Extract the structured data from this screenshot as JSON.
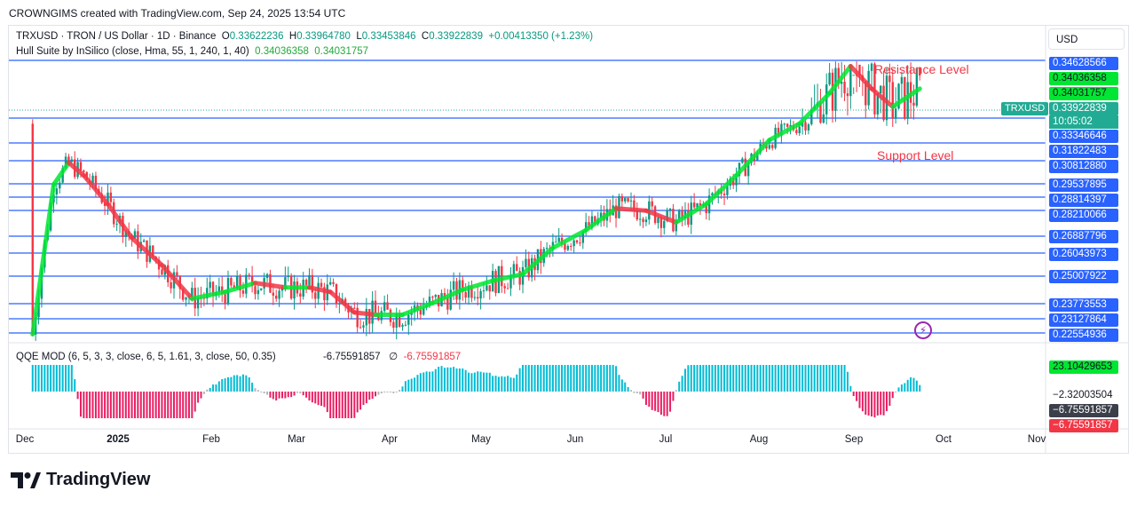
{
  "header": {
    "attribution": "CROWNGIMS created with TradingView.com, Sep 24, 2025 13:54 UTC"
  },
  "legend": {
    "symbol": "TRXUSD · TRON / US Dollar · 1D · Binance",
    "o_label": "O",
    "o_value": "0.33622236",
    "h_label": "H",
    "h_value": "0.33964780",
    "l_label": "L",
    "l_value": "0.33453846",
    "c_label": "C",
    "c_value": "0.33922839",
    "change": "+0.00413350 (+1.23%)",
    "indicator": "Hull Suite by InSilico (close, Hma, 55, 1, 240, 1, 40)",
    "indicator_v1": "0.34036358",
    "indicator_v2": "0.34031757",
    "qqe": "QQE MOD (6, 5, 3, 3, close, 6, 5, 1.61, 3, close, 50, 0.35)",
    "qqe_v1": "-6.75591857",
    "qqe_v2": "∅",
    "qqe_v3": "-6.75591857"
  },
  "currency": "USD",
  "symbol_tag": "TRXUSD",
  "countdown": "10:05:02",
  "annotations": {
    "resistance": "Resistance Level",
    "support": "Support Level"
  },
  "price_labels": [
    {
      "value": "0.34628566",
      "style": "blue"
    },
    {
      "value": "0.34036358",
      "style": "green"
    },
    {
      "value": "0.34031757",
      "style": "green"
    },
    {
      "value": "0.33922839",
      "style": "teal"
    },
    {
      "value": "0.33346646",
      "style": "blue"
    },
    {
      "value": "0.31822483",
      "style": "blue"
    },
    {
      "value": "0.30812880",
      "style": "blue"
    },
    {
      "value": "0.29537895",
      "style": "blue"
    },
    {
      "value": "0.28814397",
      "style": "blue"
    },
    {
      "value": "0.28210066",
      "style": "blue"
    },
    {
      "value": "0.26887796",
      "style": "blue"
    },
    {
      "value": "0.26043973",
      "style": "blue"
    },
    {
      "value": "0.25007922",
      "style": "blue"
    },
    {
      "value": "0.23773553",
      "style": "blue"
    },
    {
      "value": "0.23127864",
      "style": "blue"
    },
    {
      "value": "0.22554936",
      "style": "blue"
    }
  ],
  "qqe_labels": [
    {
      "value": "23.10429653",
      "style": "qgreen"
    },
    {
      "value": "−2.32003504",
      "style": "white"
    },
    {
      "value": "−6.75591857",
      "style": "dark"
    },
    {
      "value": "−6.75591857",
      "style": "red"
    }
  ],
  "x_axis": [
    "Dec",
    "2025",
    "Feb",
    "Mar",
    "Apr",
    "May",
    "Jun",
    "Jul",
    "Aug",
    "Sep",
    "Oct",
    "Nov"
  ],
  "brand": "TradingView",
  "colors": {
    "up": "#089981",
    "down": "#f23645",
    "level": "#2962ff",
    "hull_up": "#00e632",
    "hull_down": "#f23645",
    "qqe_pos": "#00bcd4",
    "qqe_neg": "#e91e63",
    "qqe_neutral": "#b2b5be"
  },
  "chart_data": {
    "type": "candlestick",
    "title": "TRXUSD · TRON / US Dollar · 1D · Binance",
    "x_range": [
      "2024-12-01",
      "2025-11-01"
    ],
    "y_range": [
      0.225,
      0.3475
    ],
    "horizontal_levels": [
      0.34628566,
      0.33346646,
      0.31822483,
      0.3081288,
      0.29537895,
      0.28814397,
      0.28210066,
      0.26887796,
      0.26043973,
      0.25007922,
      0.23773553,
      0.23127864,
      0.22554936
    ],
    "hull_series": {
      "name": "Hull Suite by InSilico",
      "points": [
        [
          "2024-12-03",
          0.225
        ],
        [
          "2024-12-10",
          0.295
        ],
        [
          "2024-12-15",
          0.307
        ],
        [
          "2024-12-20",
          0.3
        ],
        [
          "2024-12-28",
          0.285
        ],
        [
          "2025-01-05",
          0.268
        ],
        [
          "2025-01-15",
          0.255
        ],
        [
          "2025-01-25",
          0.24
        ],
        [
          "2025-02-05",
          0.243
        ],
        [
          "2025-02-15",
          0.247
        ],
        [
          "2025-02-25",
          0.245
        ],
        [
          "2025-03-05",
          0.245
        ],
        [
          "2025-03-12",
          0.243
        ],
        [
          "2025-03-20",
          0.234
        ],
        [
          "2025-03-27",
          0.233
        ],
        [
          "2025-04-05",
          0.233
        ],
        [
          "2025-04-15",
          0.238
        ],
        [
          "2025-04-25",
          0.244
        ],
        [
          "2025-05-05",
          0.248
        ],
        [
          "2025-05-15",
          0.251
        ],
        [
          "2025-05-25",
          0.263
        ],
        [
          "2025-06-05",
          0.272
        ],
        [
          "2025-06-15",
          0.283
        ],
        [
          "2025-06-25",
          0.282
        ],
        [
          "2025-07-05",
          0.276
        ],
        [
          "2025-07-15",
          0.285
        ],
        [
          "2025-07-25",
          0.3
        ],
        [
          "2025-08-05",
          0.32
        ],
        [
          "2025-08-15",
          0.33
        ],
        [
          "2025-08-25",
          0.339
        ],
        [
          "2025-09-01",
          0.345
        ],
        [
          "2025-09-08",
          0.34
        ],
        [
          "2025-09-15",
          0.336
        ],
        [
          "2025-09-24",
          0.34
        ]
      ]
    },
    "qqe_histogram": {
      "name": "QQE MOD",
      "last": -6.75591857
    }
  }
}
